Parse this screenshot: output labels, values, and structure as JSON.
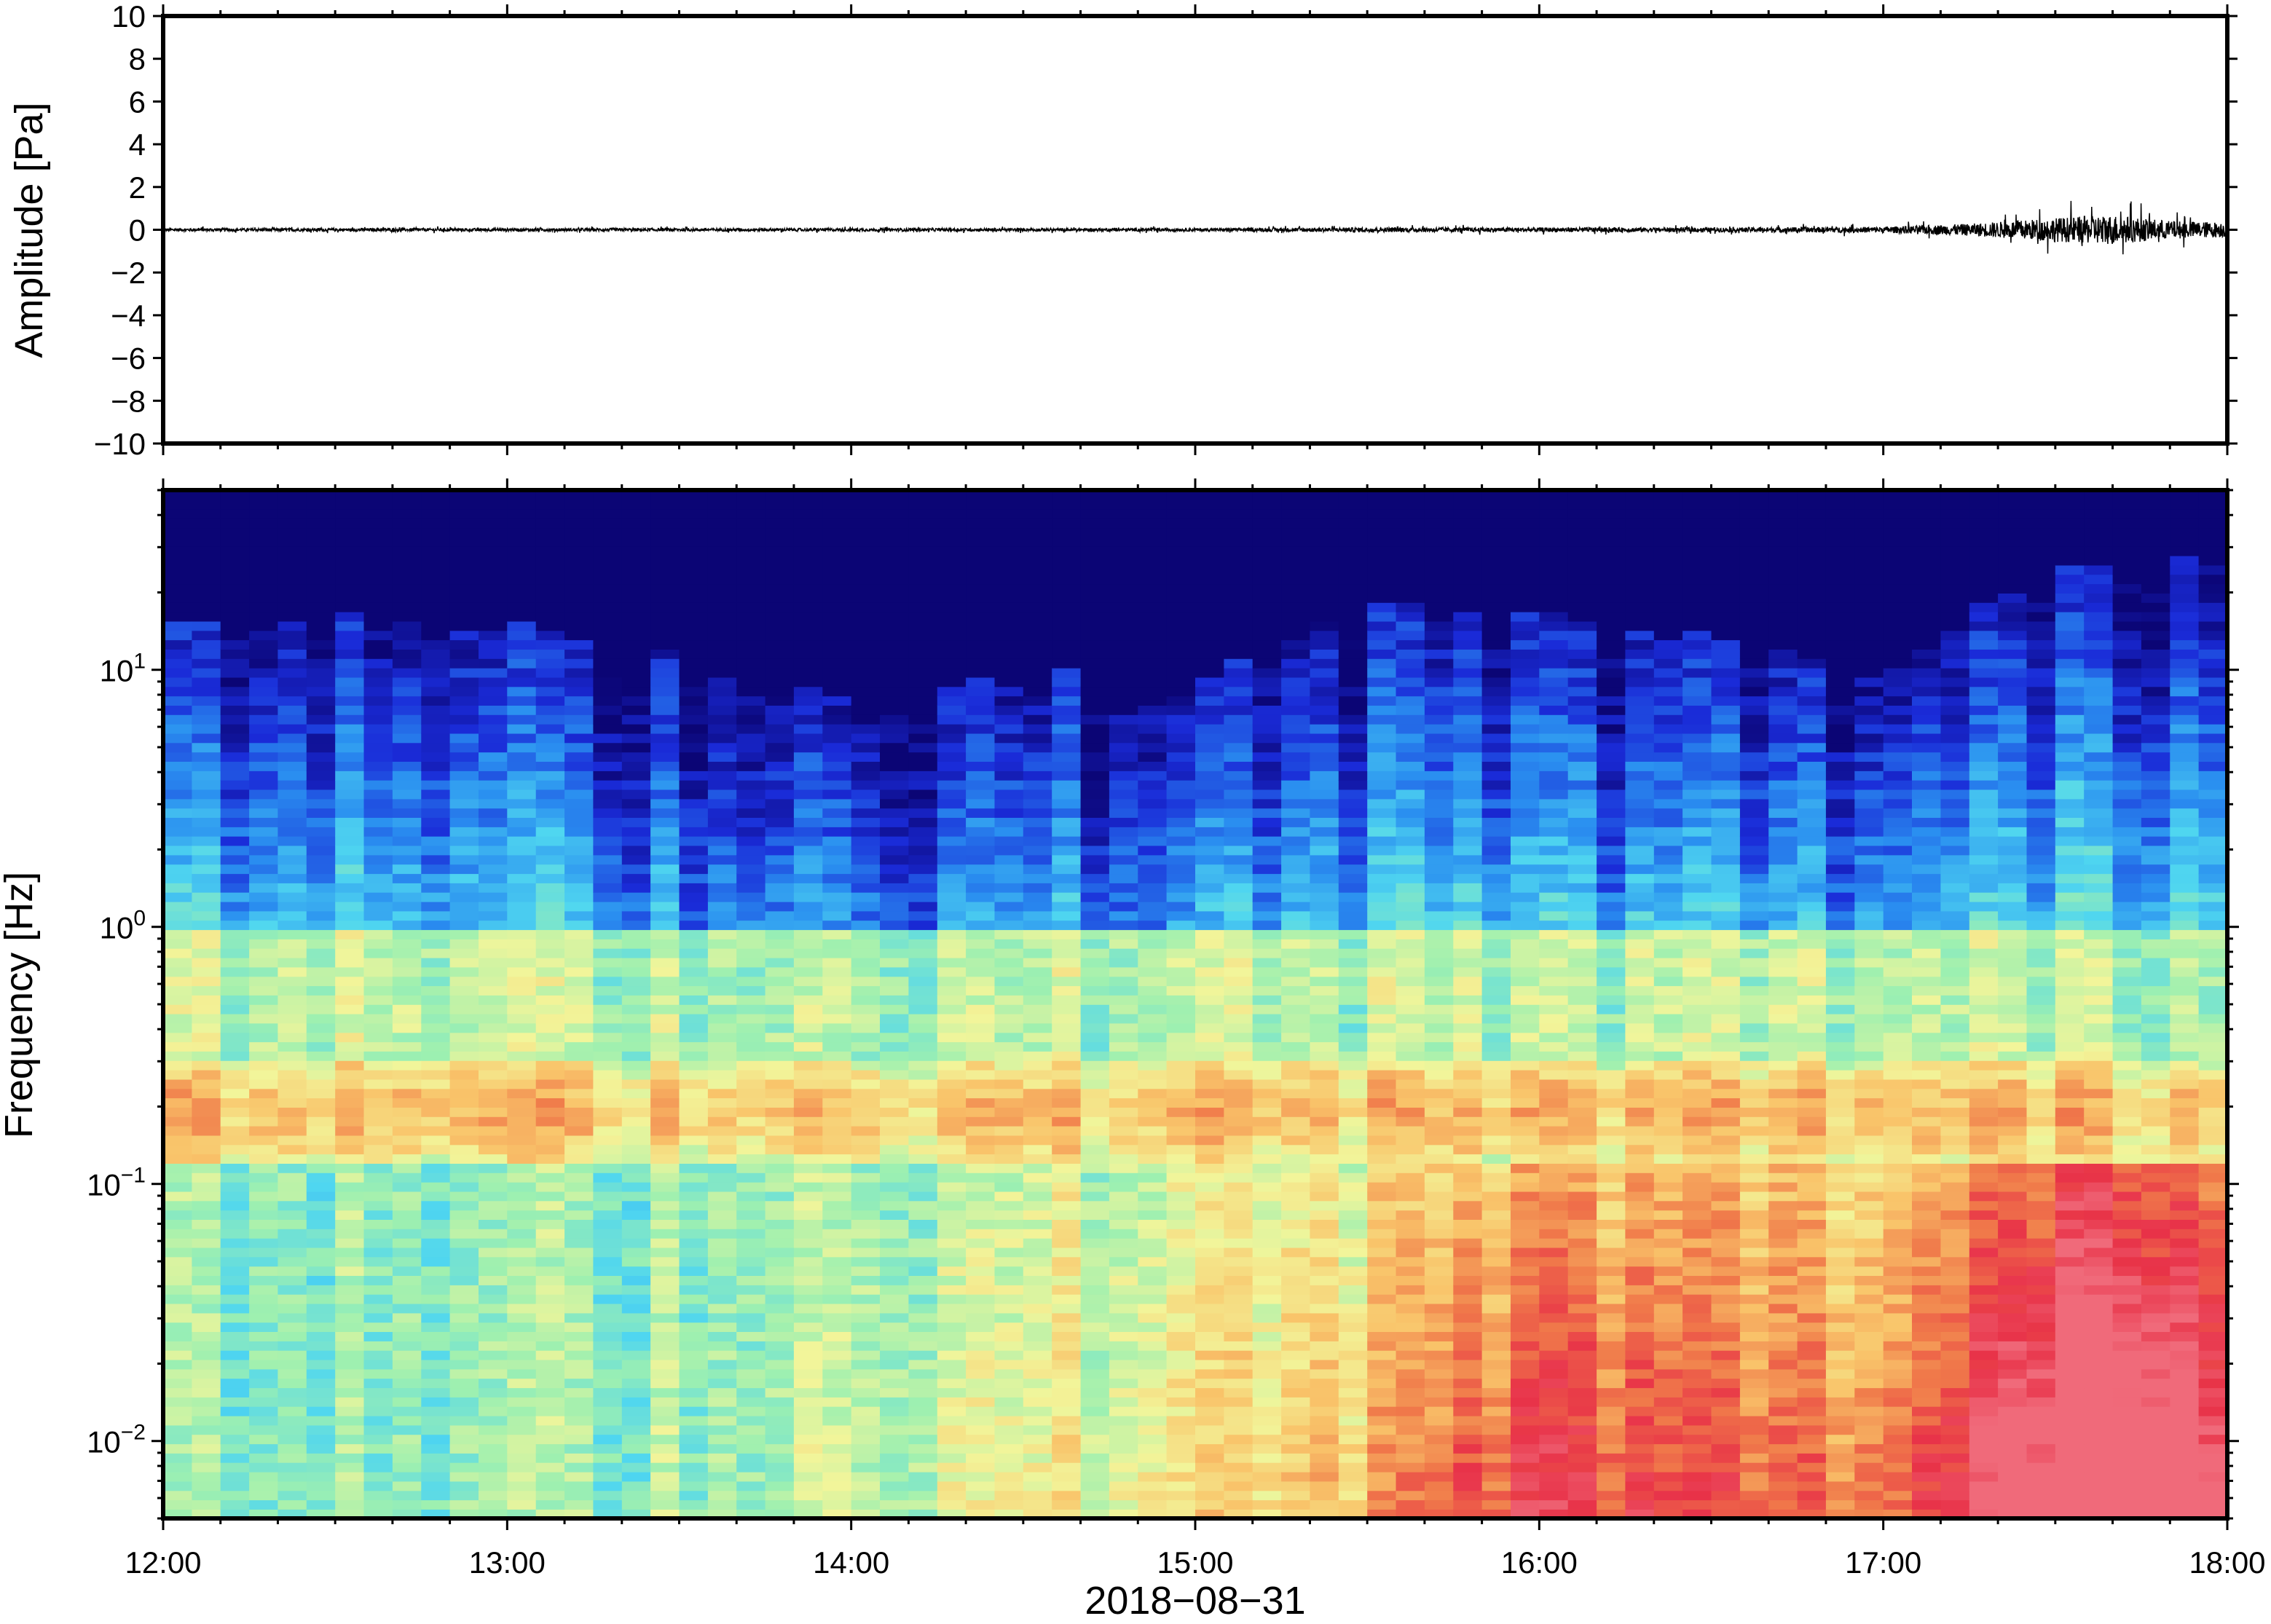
{
  "chart_data": [
    {
      "type": "line",
      "panel": "waveform",
      "ylabel": "Amplitude [Pa]",
      "ylim": [
        -10,
        10
      ],
      "yticks": [
        -10,
        -8,
        -6,
        -4,
        -2,
        0,
        2,
        4,
        6,
        8,
        10
      ],
      "ytick_labels": [
        "−10",
        "−8",
        "−6",
        "−4",
        "−2",
        "0",
        "2",
        "4",
        "6",
        "8",
        "10"
      ],
      "xlim": [
        "12:00",
        "18:00"
      ],
      "series": [
        {
          "x": [
            "12:00",
            "12:30",
            "13:00",
            "13:30",
            "14:00",
            "14:30",
            "15:00",
            "15:30",
            "16:00",
            "16:30",
            "17:00",
            "17:15",
            "17:30",
            "17:40",
            "17:50",
            "18:00"
          ],
          "y": [
            0.1,
            0.1,
            0.1,
            0.1,
            0.1,
            0.1,
            0.1,
            0.15,
            0.15,
            0.15,
            0.2,
            0.4,
            0.8,
            1.0,
            0.6,
            0.5
          ]
        }
      ],
      "line_color": "#000000"
    },
    {
      "type": "heatmap",
      "panel": "spectrogram",
      "ylabel": "Frequency [Hz]",
      "xlabel": "2018−08−31",
      "y_scale": "log",
      "ylim": [
        0.005,
        50
      ],
      "yticks": [
        0.01,
        0.1,
        1,
        10
      ],
      "ytick_labels": [
        {
          "base": "10",
          "exp": "−2"
        },
        {
          "base": "10",
          "exp": "−1"
        },
        {
          "base": "10",
          "exp": "0"
        },
        {
          "base": "10",
          "exp": "1"
        }
      ],
      "xticks": [
        "12:00",
        "13:00",
        "14:00",
        "15:00",
        "16:00",
        "17:00",
        "18:00"
      ],
      "xlim": [
        "12:00",
        "18:00"
      ],
      "colormap": "rainbow (dark blue low → red high)",
      "colormap_stops": [
        "#0b0575",
        "#1a2bd8",
        "#2a8ff0",
        "#4fd6f0",
        "#9ef0b0",
        "#f2f59a",
        "#f9c46a",
        "#f07a4a",
        "#e83248",
        "#f06a7a"
      ],
      "upper_limit_hz_per_hour": {
        "hours": [
          "12:00",
          "12:30",
          "13:00",
          "13:30",
          "14:00",
          "14:30",
          "15:00",
          "15:30",
          "16:00",
          "16:30",
          "17:00",
          "17:15",
          "17:30",
          "17:45",
          "18:00"
        ],
        "hz": [
          9,
          10,
          9,
          7,
          5,
          6,
          5,
          11,
          10,
          8,
          6,
          10,
          14,
          17,
          20
        ]
      },
      "low_freq_energy_per_hour": {
        "hours": [
          "12:00",
          "13:00",
          "14:00",
          "15:00",
          "15:30",
          "16:00",
          "16:30",
          "17:00",
          "17:30",
          "17:45",
          "18:00"
        ],
        "level": [
          0.45,
          0.45,
          0.5,
          0.55,
          0.6,
          0.72,
          0.68,
          0.65,
          0.85,
          0.9,
          0.78
        ]
      },
      "microseism_band_hz": [
        0.12,
        0.3
      ]
    }
  ]
}
